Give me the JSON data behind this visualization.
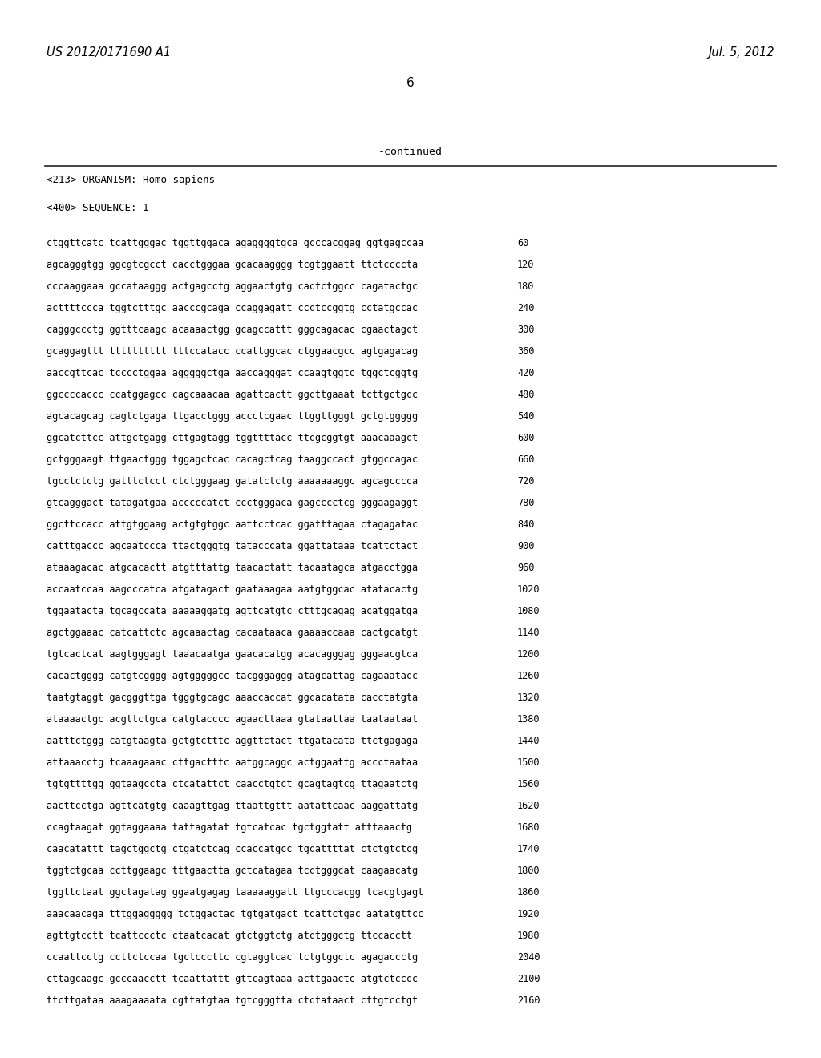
{
  "header_left": "US 2012/0171690 A1",
  "header_right": "Jul. 5, 2012",
  "page_number": "6",
  "continued_text": "-continued",
  "background_color": "#ffffff",
  "text_color": "#000000",
  "organism_line": "<213> ORGANISM: Homo sapiens",
  "sequence_line": "<400> SEQUENCE: 1",
  "sequence_data": [
    {
      "seq": "ctggttcatc tcattgggac tggttggaca agaggggtgca gcccacggag ggtgagccaa",
      "num": "60"
    },
    {
      "seq": "agcagggtgg ggcgtcgcct cacctgggaa gcacaagggg tcgtggaatt ttctccccta",
      "num": "120"
    },
    {
      "seq": "cccaaggaaa gccataaggg actgagcctg aggaactgtg cactctggcc cagatactgc",
      "num": "180"
    },
    {
      "seq": "acttttccca tggtctttgc aacccgcaga ccaggagatt ccctccggtg cctatgccac",
      "num": "240"
    },
    {
      "seq": "cagggccctg ggtttcaagc acaaaactgg gcagccattt gggcagacac cgaactagct",
      "num": "300"
    },
    {
      "seq": "gcaggagttt tttttttttt tttccatacc ccattggcac ctggaacgcc agtgagacag",
      "num": "360"
    },
    {
      "seq": "aaccgttcac tcccctggaa agggggctga aaccagggat ccaagtggtc tggctcggtg",
      "num": "420"
    },
    {
      "seq": "ggccccaccc ccatggagcc cagcaaacaa agattcactt ggcttgaaat tcttgctgcc",
      "num": "480"
    },
    {
      "seq": "agcacagcag cagtctgaga ttgacctggg accctcgaac ttggttgggt gctgtggggg",
      "num": "540"
    },
    {
      "seq": "ggcatcttcc attgctgagg cttgagtagg tggttttacc ttcgcggtgt aaacaaagct",
      "num": "600"
    },
    {
      "seq": "gctgggaagt ttgaactggg tggagctcac cacagctcag taaggccact gtggccagac",
      "num": "660"
    },
    {
      "seq": "tgcctctctg gatttctcct ctctgggaag gatatctctg aaaaaaaggc agcagcccca",
      "num": "720"
    },
    {
      "seq": "gtcagggact tatagatgaa acccccatct ccctgggaca gagcccctcg gggaagaggt",
      "num": "780"
    },
    {
      "seq": "ggcttccacc attgtggaag actgtgtggc aattcctcac ggatttagaa ctagagatac",
      "num": "840"
    },
    {
      "seq": "catttgaccc agcaatccca ttactgggtg tatacccata ggattataaa tcattctact",
      "num": "900"
    },
    {
      "seq": "ataaagacac atgcacactt atgtttattg taacactatt tacaatagca atgacctgga",
      "num": "960"
    },
    {
      "seq": "accaatccaa aagcccatca atgatagact gaataaagaa aatgtggcac atatacactg",
      "num": "1020"
    },
    {
      "seq": "tggaatacta tgcagccata aaaaaggatg agttcatgtc ctttgcagag acatggatga",
      "num": "1080"
    },
    {
      "seq": "agctggaaac catcattctc agcaaactag cacaataaca gaaaaccaaa cactgcatgt",
      "num": "1140"
    },
    {
      "seq": "tgtcactcat aagtgggagt taaacaatga gaacacatgg acacagggag gggaacgtca",
      "num": "1200"
    },
    {
      "seq": "cacactgggg catgtcgggg agtgggggcc tacgggaggg atagcattag cagaaatacc",
      "num": "1260"
    },
    {
      "seq": "taatgtaggt gacgggttga tgggtgcagc aaaccaccat ggcacatata cacctatgta",
      "num": "1320"
    },
    {
      "seq": "ataaaactgc acgttctgca catgtacccc agaacttaaa gtataattaa taataataat",
      "num": "1380"
    },
    {
      "seq": "aatttctggg catgtaagta gctgtctttc aggttctact ttgatacata ttctgagaga",
      "num": "1440"
    },
    {
      "seq": "attaaacctg tcaaagaaac cttgactttc aatggcaggc actggaattg accctaataa",
      "num": "1500"
    },
    {
      "seq": "tgtgttttgg ggtaagccta ctcatattct caacctgtct gcagtagtcg ttagaatctg",
      "num": "1560"
    },
    {
      "seq": "aacttcctga agttcatgtg caaagttgag ttaattgttt aatattcaac aaggattatg",
      "num": "1620"
    },
    {
      "seq": "ccagtaagat ggtaggaaaa tattagatat tgtcatcac tgctggtatt atttaaactg",
      "num": "1680"
    },
    {
      "seq": "caacatattt tagctggctg ctgatctcag ccaccatgcc tgcattttat ctctgtctcg",
      "num": "1740"
    },
    {
      "seq": "tggtctgcaa ccttggaagc tttgaactta gctcatagaa tcctgggcat caagaacatg",
      "num": "1800"
    },
    {
      "seq": "tggttctaat ggctagatag ggaatgagag taaaaaggatt ttgcccacgg tcacgtgagt",
      "num": "1860"
    },
    {
      "seq": "aaacaacaga tttggaggggg tctggactac tgtgatgact tcattctgac aatatgttcc",
      "num": "1920"
    },
    {
      "seq": "agttgtcctt tcattccctc ctaatcacat gtctggtctg atctgggctg ttccacctt",
      "num": "1980"
    },
    {
      "seq": "ccaattcctg ccttctccaa tgctcccttc cgtaggtcac tctgtggctc agagaccctg",
      "num": "2040"
    },
    {
      "seq": "cttagcaagc gcccaacctt tcaattattt gttcagtaaa acttgaactc atgtctcccc",
      "num": "2100"
    },
    {
      "seq": "ttcttgataa aaagaaaata cgttatgtaa tgtcgggtta ctctataact cttgtcctgt",
      "num": "2160"
    }
  ],
  "figwidth": 10.24,
  "figheight": 13.2,
  "dpi": 100
}
